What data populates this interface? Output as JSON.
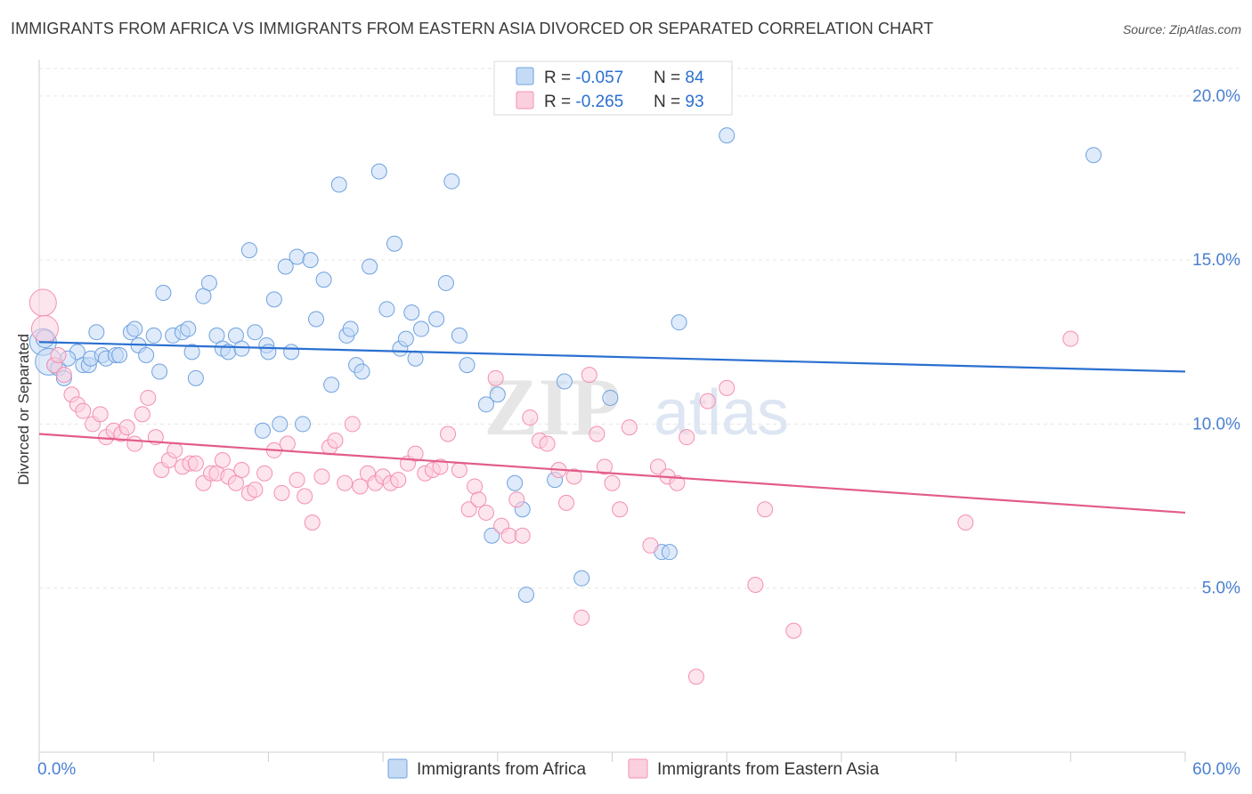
{
  "header": {
    "title": "IMMIGRANTS FROM AFRICA VS IMMIGRANTS FROM EASTERN ASIA DIVORCED OR SEPARATED CORRELATION CHART",
    "source": "Source: ZipAtlas.com"
  },
  "watermark": {
    "zip": "ZIP",
    "atlas": "atlas"
  },
  "chart_data": {
    "type": "scatter",
    "title": "IMMIGRANTS FROM AFRICA VS IMMIGRANTS FROM EASTERN ASIA DIVORCED OR SEPARATED CORRELATION CHART",
    "ylabel": "Divorced or Separated",
    "xlabel": "",
    "xlim": [
      0,
      60
    ],
    "ylim": [
      0,
      21
    ],
    "x_tick_labels": [
      "0.0%",
      "60.0%"
    ],
    "y_ticks": [
      5,
      10,
      15,
      20
    ],
    "y_tick_labels": [
      "5.0%",
      "10.0%",
      "15.0%",
      "20.0%"
    ],
    "grid": true,
    "legend_position": "top-center",
    "legend": {
      "rows": [
        {
          "r_label": "R = ",
          "r_value": "-0.057",
          "n_label": "N = ",
          "n_value": "84"
        },
        {
          "r_label": "R = ",
          "r_value": "-0.265",
          "n_label": "N = ",
          "n_value": "93"
        }
      ]
    },
    "series": [
      {
        "name": "Immigrants from Africa",
        "color": "#6fa1e0",
        "line_color": "#2a6fd1",
        "trend": {
          "x": [
            0,
            60
          ],
          "y": [
            12.5,
            11.6
          ]
        },
        "points": [
          [
            0.2,
            12.5
          ],
          [
            0.5,
            11.9
          ],
          [
            0.8,
            11.8
          ],
          [
            1.0,
            11.7
          ],
          [
            1.3,
            11.4
          ],
          [
            2.0,
            12.2
          ],
          [
            2.3,
            11.8
          ],
          [
            2.6,
            11.8
          ],
          [
            2.7,
            12.0
          ],
          [
            3.0,
            12.8
          ],
          [
            3.3,
            12.1
          ],
          [
            3.5,
            12.0
          ],
          [
            4.0,
            12.1
          ],
          [
            4.2,
            12.1
          ],
          [
            4.8,
            12.8
          ],
          [
            5.0,
            12.9
          ],
          [
            5.2,
            12.4
          ],
          [
            5.6,
            12.1
          ],
          [
            6.0,
            12.7
          ],
          [
            6.3,
            11.6
          ],
          [
            6.5,
            14.0
          ],
          [
            7.0,
            12.7
          ],
          [
            7.5,
            12.8
          ],
          [
            7.8,
            12.9
          ],
          [
            8.0,
            12.2
          ],
          [
            8.2,
            11.4
          ],
          [
            8.6,
            13.9
          ],
          [
            8.9,
            14.3
          ],
          [
            9.3,
            12.7
          ],
          [
            9.6,
            12.3
          ],
          [
            9.9,
            12.2
          ],
          [
            10.3,
            12.7
          ],
          [
            10.6,
            12.3
          ],
          [
            11.0,
            15.3
          ],
          [
            11.3,
            12.8
          ],
          [
            11.7,
            9.8
          ],
          [
            11.9,
            12.4
          ],
          [
            12.0,
            12.2
          ],
          [
            12.3,
            13.8
          ],
          [
            12.6,
            10.0
          ],
          [
            12.9,
            14.8
          ],
          [
            13.2,
            12.2
          ],
          [
            13.5,
            15.1
          ],
          [
            13.8,
            10.0
          ],
          [
            14.2,
            15.0
          ],
          [
            14.5,
            13.2
          ],
          [
            14.9,
            14.4
          ],
          [
            15.3,
            11.2
          ],
          [
            15.7,
            17.3
          ],
          [
            16.1,
            12.7
          ],
          [
            16.3,
            12.9
          ],
          [
            16.6,
            11.8
          ],
          [
            16.9,
            11.6
          ],
          [
            17.3,
            14.8
          ],
          [
            17.8,
            17.7
          ],
          [
            18.2,
            13.5
          ],
          [
            18.6,
            15.5
          ],
          [
            18.9,
            12.3
          ],
          [
            19.2,
            12.6
          ],
          [
            19.5,
            13.4
          ],
          [
            19.7,
            12.0
          ],
          [
            20.0,
            12.9
          ],
          [
            20.8,
            13.2
          ],
          [
            21.3,
            14.3
          ],
          [
            21.6,
            17.4
          ],
          [
            22.0,
            12.7
          ],
          [
            22.4,
            11.8
          ],
          [
            23.4,
            10.6
          ],
          [
            23.7,
            6.6
          ],
          [
            24.0,
            10.9
          ],
          [
            24.9,
            8.2
          ],
          [
            25.3,
            7.4
          ],
          [
            25.5,
            4.8
          ],
          [
            27.0,
            8.3
          ],
          [
            27.5,
            11.3
          ],
          [
            28.4,
            5.3
          ],
          [
            29.9,
            10.8
          ],
          [
            32.6,
            6.1
          ],
          [
            33.0,
            6.1
          ],
          [
            33.5,
            13.1
          ],
          [
            36.0,
            18.8
          ],
          [
            55.2,
            18.2
          ],
          [
            0.3,
            12.6
          ],
          [
            1.5,
            12.0
          ]
        ]
      },
      {
        "name": "Immigrants from Eastern Asia",
        "color": "#f48fb1",
        "line_color": "#e25c8c",
        "trend": {
          "x": [
            0,
            60
          ],
          "y": [
            9.7,
            7.3
          ]
        },
        "points": [
          [
            0.2,
            13.7
          ],
          [
            0.3,
            12.9
          ],
          [
            0.8,
            11.8
          ],
          [
            1.0,
            12.1
          ],
          [
            1.3,
            11.5
          ],
          [
            1.7,
            10.9
          ],
          [
            2.0,
            10.6
          ],
          [
            2.3,
            10.4
          ],
          [
            2.8,
            10.0
          ],
          [
            3.2,
            10.3
          ],
          [
            3.5,
            9.6
          ],
          [
            3.9,
            9.8
          ],
          [
            4.3,
            9.7
          ],
          [
            4.6,
            9.9
          ],
          [
            5.0,
            9.4
          ],
          [
            5.4,
            10.3
          ],
          [
            5.7,
            10.8
          ],
          [
            6.1,
            9.6
          ],
          [
            6.4,
            8.6
          ],
          [
            6.8,
            8.9
          ],
          [
            7.1,
            9.2
          ],
          [
            7.5,
            8.7
          ],
          [
            7.9,
            8.8
          ],
          [
            8.2,
            8.8
          ],
          [
            8.6,
            8.2
          ],
          [
            9.0,
            8.5
          ],
          [
            9.3,
            8.5
          ],
          [
            9.6,
            8.9
          ],
          [
            9.9,
            8.4
          ],
          [
            10.3,
            8.2
          ],
          [
            10.6,
            8.6
          ],
          [
            11.0,
            7.9
          ],
          [
            11.3,
            8.0
          ],
          [
            11.8,
            8.5
          ],
          [
            12.3,
            9.2
          ],
          [
            12.7,
            7.9
          ],
          [
            13.0,
            9.4
          ],
          [
            13.5,
            8.3
          ],
          [
            13.9,
            7.8
          ],
          [
            14.3,
            7.0
          ],
          [
            14.8,
            8.4
          ],
          [
            15.2,
            9.3
          ],
          [
            15.5,
            9.5
          ],
          [
            16.0,
            8.2
          ],
          [
            16.4,
            10.0
          ],
          [
            16.8,
            8.1
          ],
          [
            17.2,
            8.5
          ],
          [
            17.6,
            8.2
          ],
          [
            18.0,
            8.4
          ],
          [
            18.4,
            8.2
          ],
          [
            18.8,
            8.3
          ],
          [
            19.3,
            8.8
          ],
          [
            19.7,
            9.1
          ],
          [
            20.2,
            8.5
          ],
          [
            20.6,
            8.6
          ],
          [
            21.0,
            8.7
          ],
          [
            21.4,
            9.7
          ],
          [
            22.0,
            8.6
          ],
          [
            22.5,
            7.4
          ],
          [
            22.8,
            8.1
          ],
          [
            23.0,
            7.7
          ],
          [
            23.4,
            7.3
          ],
          [
            23.9,
            11.4
          ],
          [
            24.2,
            6.9
          ],
          [
            24.6,
            6.6
          ],
          [
            25.0,
            7.7
          ],
          [
            25.3,
            6.6
          ],
          [
            25.7,
            10.2
          ],
          [
            26.2,
            9.5
          ],
          [
            26.6,
            9.4
          ],
          [
            27.2,
            8.6
          ],
          [
            27.6,
            7.6
          ],
          [
            28.0,
            8.4
          ],
          [
            28.4,
            4.1
          ],
          [
            28.8,
            11.5
          ],
          [
            29.2,
            9.7
          ],
          [
            29.6,
            8.7
          ],
          [
            30.0,
            8.2
          ],
          [
            30.4,
            7.4
          ],
          [
            30.9,
            9.9
          ],
          [
            32.0,
            6.3
          ],
          [
            32.4,
            8.7
          ],
          [
            32.9,
            8.4
          ],
          [
            33.4,
            8.2
          ],
          [
            33.9,
            9.6
          ],
          [
            34.4,
            2.3
          ],
          [
            35.0,
            10.7
          ],
          [
            36.0,
            11.1
          ],
          [
            37.5,
            5.1
          ],
          [
            38.0,
            7.4
          ],
          [
            39.5,
            3.7
          ],
          [
            48.5,
            7.0
          ],
          [
            54.0,
            12.6
          ]
        ]
      }
    ]
  }
}
